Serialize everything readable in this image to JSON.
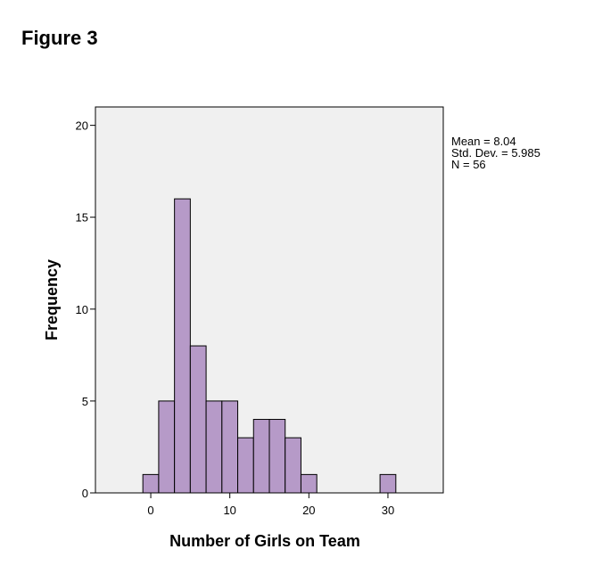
{
  "figure_title": "Figure 3",
  "stats": {
    "mean": "Mean = 8.04",
    "std_dev": "Std. Dev. = 5.985",
    "n": "N = 56"
  },
  "chart_data": {
    "type": "bar",
    "title": "",
    "xlabel": "Number of Girls on Team",
    "ylabel": "Frequency",
    "xlim": [
      -7,
      37
    ],
    "ylim": [
      0,
      21
    ],
    "x_ticks": [
      0,
      10,
      20,
      30
    ],
    "y_ticks": [
      0,
      5,
      10,
      15,
      20
    ],
    "bin_width": 2,
    "bins": [
      {
        "start": -1,
        "end": 1,
        "count": 1
      },
      {
        "start": 1,
        "end": 3,
        "count": 5
      },
      {
        "start": 3,
        "end": 5,
        "count": 16
      },
      {
        "start": 5,
        "end": 7,
        "count": 8
      },
      {
        "start": 7,
        "end": 9,
        "count": 5
      },
      {
        "start": 9,
        "end": 11,
        "count": 5
      },
      {
        "start": 11,
        "end": 13,
        "count": 3
      },
      {
        "start": 13,
        "end": 15,
        "count": 4
      },
      {
        "start": 15,
        "end": 17,
        "count": 4
      },
      {
        "start": 17,
        "end": 19,
        "count": 3
      },
      {
        "start": 19,
        "end": 21,
        "count": 1
      },
      {
        "start": 29,
        "end": 31,
        "count": 1
      }
    ],
    "bar_color": "#b69ac8",
    "plot_background": "#f0f0f0",
    "grid": false
  }
}
